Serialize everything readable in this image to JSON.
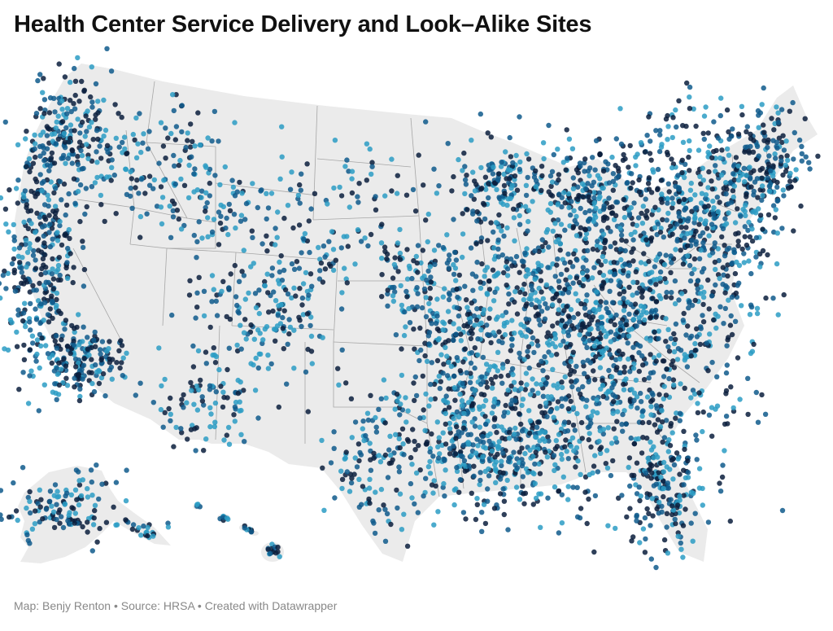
{
  "header": {
    "title": "Health Center Service Delivery and Look–Alike Sites"
  },
  "footer": {
    "credit": "Map: Benjy Renton",
    "source": "Source: HRSA",
    "tool": "Created with Datawrapper",
    "separator": "•"
  },
  "map": {
    "regions": [
      "contiguous-us",
      "alaska",
      "hawaii"
    ],
    "colors": {
      "land": "#ebebeb",
      "border": "#a6a6a6",
      "site_light": "#2b9cc4",
      "site_mid": "#0f5a8c",
      "site_dark": "#0a1f3d"
    }
  }
}
